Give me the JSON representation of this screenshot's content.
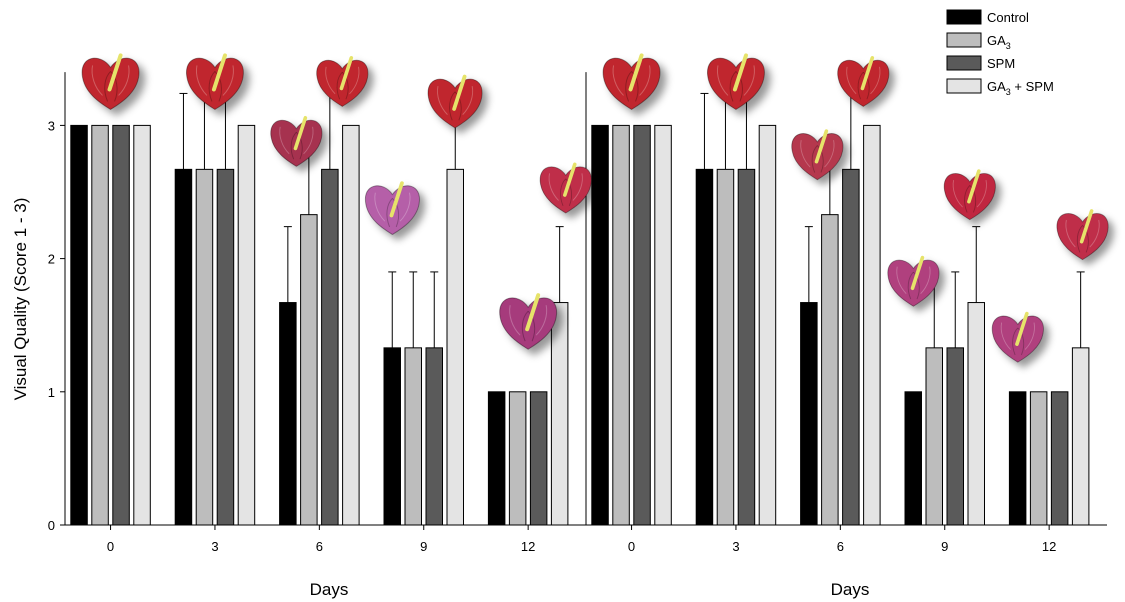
{
  "chart_data": {
    "type": "bar",
    "ylabel": "Visual Quality (Score 1 - 3)",
    "ylim": [
      0,
      3.4
    ],
    "yticks": [
      0,
      1,
      2,
      3
    ],
    "legend_position": "top-right",
    "legend": [
      {
        "name": "Control",
        "base": "Control",
        "sub": "",
        "suffix": "",
        "color": "#000000"
      },
      {
        "name": "GA3",
        "base": "GA",
        "sub": "3",
        "suffix": "",
        "color": "#bdbdbd"
      },
      {
        "name": "SPM",
        "base": "SPM",
        "sub": "",
        "suffix": "",
        "color": "#5a5a5a"
      },
      {
        "name": "GA3 + SPM",
        "base": "GA",
        "sub": "3",
        "suffix": " + SPM",
        "color": "#e4e4e4"
      }
    ],
    "panels": [
      {
        "xlabel": "Days",
        "categories": [
          "0",
          "3",
          "6",
          "9",
          "12"
        ],
        "series": [
          {
            "name": "Control",
            "values": [
              3,
              2.67,
              1.67,
              1.33,
              1.0
            ],
            "errors": [
              0,
              0.57,
              0.57,
              0.57,
              0
            ]
          },
          {
            "name": "GA3",
            "values": [
              3,
              2.67,
              2.33,
              1.33,
              1.0
            ],
            "errors": [
              0,
              0.57,
              0.57,
              0.57,
              0
            ]
          },
          {
            "name": "SPM",
            "values": [
              3,
              2.67,
              2.67,
              1.33,
              1.0
            ],
            "errors": [
              0,
              0.57,
              0.57,
              0.57,
              0
            ]
          },
          {
            "name": "GA3 + SPM",
            "values": [
              3,
              3.0,
              3.0,
              2.67,
              1.67
            ],
            "errors": [
              0,
              0,
              0,
              0.57,
              0.57
            ]
          }
        ],
        "flowers": [
          {
            "color": "#c0272d",
            "size": 1.0,
            "score": 3.3,
            "group": 0,
            "offset": 0
          },
          {
            "color": "#c0272d",
            "size": 1.0,
            "score": 3.3,
            "group": 1,
            "offset": 0
          },
          {
            "color": "#a6314f",
            "size": 0.9,
            "score": 2.85,
            "group": 2,
            "offset": -0.55
          },
          {
            "color": "#c0272d",
            "size": 0.9,
            "score": 3.3,
            "group": 2,
            "offset": 0.55
          },
          {
            "color": "#b55fa8",
            "size": 0.95,
            "score": 2.35,
            "group": 3,
            "offset": -0.75
          },
          {
            "color": "#c0272d",
            "size": 0.95,
            "score": 3.15,
            "group": 3,
            "offset": 0.75
          },
          {
            "color": "#a63a7c",
            "size": 1.0,
            "score": 1.5,
            "group": 4,
            "offset": 0
          },
          {
            "color": "#bf2f4a",
            "size": 0.9,
            "score": 2.5,
            "group": 4,
            "offset": 0.9
          }
        ]
      },
      {
        "xlabel": "Days",
        "categories": [
          "0",
          "3",
          "6",
          "9",
          "12"
        ],
        "series": [
          {
            "name": "Control",
            "values": [
              3,
              2.67,
              1.67,
              1.0,
              1.0
            ],
            "errors": [
              0,
              0.57,
              0.57,
              0,
              0
            ]
          },
          {
            "name": "GA3",
            "values": [
              3,
              2.67,
              2.33,
              1.33,
              1.0
            ],
            "errors": [
              0,
              0.57,
              0.57,
              0.57,
              0
            ]
          },
          {
            "name": "SPM",
            "values": [
              3,
              2.67,
              2.67,
              1.33,
              1.0
            ],
            "errors": [
              0,
              0.57,
              0.57,
              0.57,
              0
            ]
          },
          {
            "name": "GA3 + SPM",
            "values": [
              3,
              3.0,
              3.0,
              1.67,
              1.33
            ],
            "errors": [
              0,
              0,
              0,
              0.57,
              0.57
            ]
          }
        ],
        "flowers": [
          {
            "color": "#c0272d",
            "size": 1.0,
            "score": 3.3,
            "group": 0,
            "offset": 0
          },
          {
            "color": "#c0272d",
            "size": 1.0,
            "score": 3.3,
            "group": 1,
            "offset": 0
          },
          {
            "color": "#b5374d",
            "size": 0.9,
            "score": 2.75,
            "group": 2,
            "offset": -0.55
          },
          {
            "color": "#c0272d",
            "size": 0.9,
            "score": 3.3,
            "group": 2,
            "offset": 0.55
          },
          {
            "color": "#b0407e",
            "size": 0.9,
            "score": 1.8,
            "group": 3,
            "offset": -0.75
          },
          {
            "color": "#c0273f",
            "size": 0.9,
            "score": 2.45,
            "group": 3,
            "offset": 0.6
          },
          {
            "color": "#b0407e",
            "size": 0.9,
            "score": 1.38,
            "group": 4,
            "offset": -0.75
          },
          {
            "color": "#bf2f4a",
            "size": 0.9,
            "score": 2.15,
            "group": 4,
            "offset": 0.8
          }
        ]
      }
    ]
  }
}
